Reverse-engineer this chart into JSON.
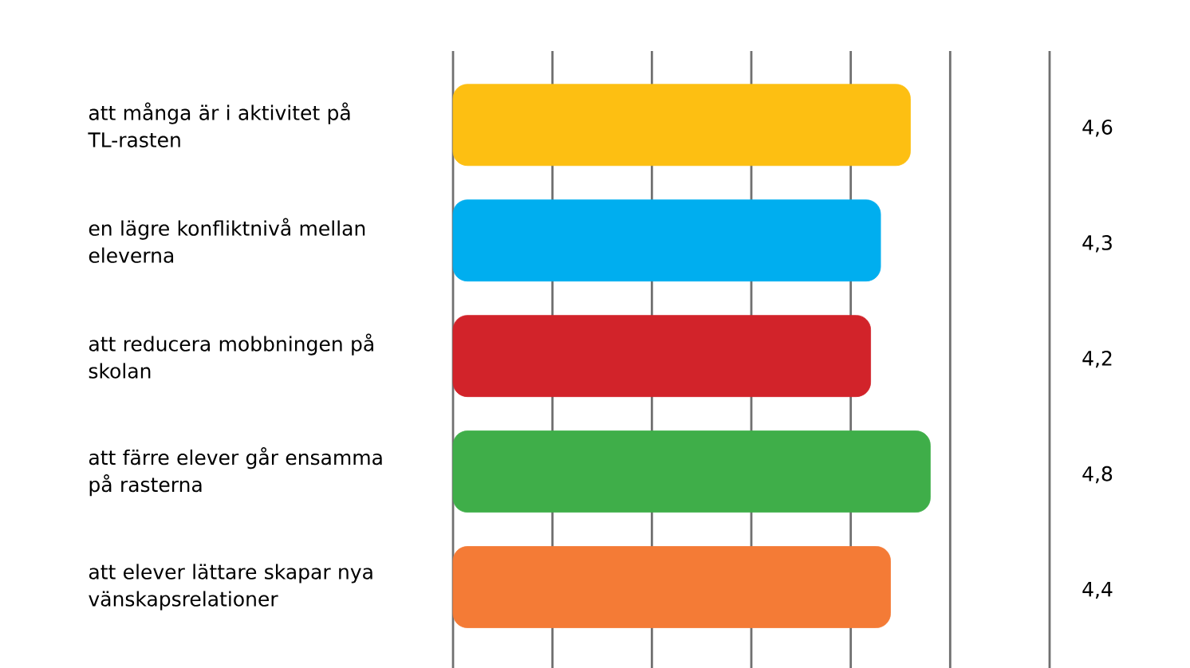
{
  "chart_data": {
    "type": "bar",
    "orientation": "horizontal",
    "categories": [
      "att många är i aktivitet på TL-rasten",
      "en lägre konfliktnivå mellan eleverna",
      "att reducera mobbningen på skolan",
      "att färre elever går ensamma på rasterna",
      "att elever lättare skapar nya vänskapsrelationer"
    ],
    "values": [
      4.6,
      4.3,
      4.2,
      4.8,
      4.4
    ],
    "colors": [
      "#fdbf12",
      "#00aeef",
      "#d2232a",
      "#3fae49",
      "#f47b36"
    ],
    "value_labels": [
      "4,6",
      "4,3",
      "4,2",
      "4,8",
      "4,4"
    ],
    "xlim": [
      0,
      6
    ],
    "xticks": [
      {
        "value": 0,
        "label": null
      },
      {
        "value": 1,
        "label": null
      },
      {
        "value": 2,
        "label": null
      },
      {
        "value": 3,
        "label": null
      },
      {
        "value": 4,
        "label": null
      },
      {
        "value": 5,
        "label": null
      },
      {
        "value": 6,
        "label": null
      }
    ],
    "grid": "x",
    "tick_labels": "y"
  }
}
